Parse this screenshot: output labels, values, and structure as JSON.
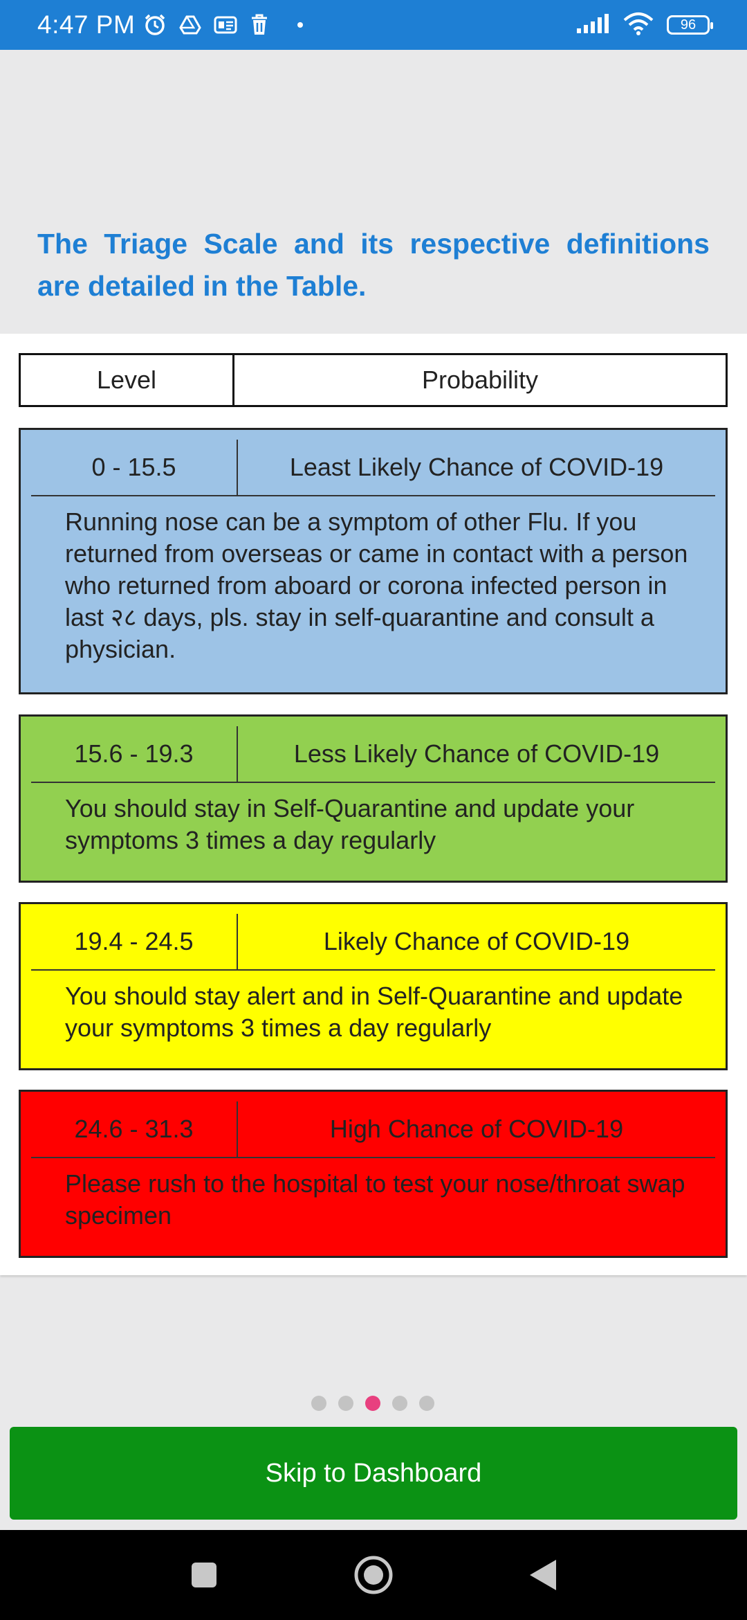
{
  "status_bar": {
    "time": "4:47 PM",
    "battery": "96",
    "icons": [
      "alarm-icon",
      "drive-icon",
      "card-icon",
      "trash-icon",
      "dot-icon",
      "signal-icon",
      "wifi-icon",
      "battery-icon"
    ]
  },
  "heading": "The Triage Scale and its respective definitions are detailed in the Table.",
  "table": {
    "header": {
      "level": "Level",
      "probability": "Probability"
    },
    "levels": [
      {
        "range": "0 - 15.5",
        "label": "Least Likely Chance of COVID-19",
        "description": "Running nose can be a symptom of other Flu. If you returned from overseas or came in contact with a person who returned from aboard or corona infected person in last २८ days, pls. stay in self-quarantine and consult a physician.",
        "color": "#9dc3e6"
      },
      {
        "range": "15.6 - 19.3",
        "label": "Less Likely Chance of COVID-19",
        "description": "You should stay in Self-Quarantine and update your symptoms 3 times a day regularly",
        "color": "#92d050"
      },
      {
        "range": "19.4 - 24.5",
        "label": "Likely Chance of COVID-19",
        "description": "You should stay alert and in Self-Quarantine and update your symptoms 3 times a day regularly",
        "color": "#ffff00"
      },
      {
        "range": "24.6 - 31.3",
        "label": "High Chance of COVID-19",
        "description": "Please rush to the hospital to test your nose/throat swap specimen",
        "color": "#ff0000"
      }
    ]
  },
  "pager": {
    "count": 5,
    "active_index": 2,
    "active_color": "#e8407f"
  },
  "skip_button": {
    "label": "Skip to Dashboard",
    "color": "#0b9214"
  },
  "nav_bar": {
    "buttons": [
      "recents-square-icon",
      "home-circle-icon",
      "back-triangle-icon"
    ]
  }
}
